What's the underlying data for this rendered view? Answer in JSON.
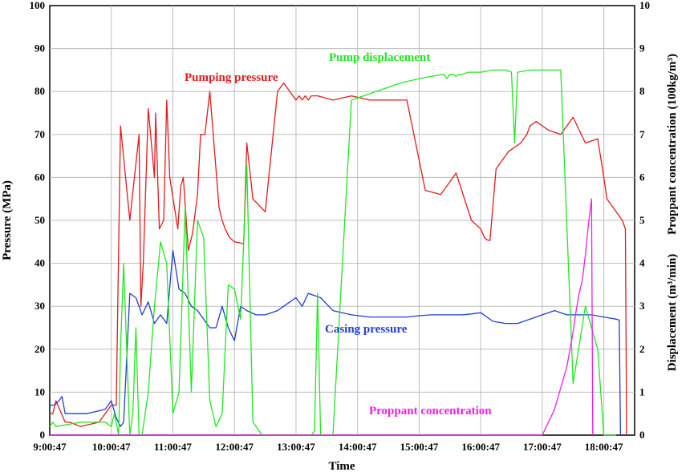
{
  "chart_data": {
    "type": "line",
    "xlabel": "Time",
    "ylabel_left": "Pressure (MPa)",
    "ylabel_right_top": "Proppant concentration (100kg/m³)",
    "ylabel_right_bottom": "Displacement (m³/min)",
    "x_ticks": [
      "9:00:47",
      "10:00:47",
      "11:00:47",
      "12:00:47",
      "13:00:47",
      "14:00:47",
      "15:00:47",
      "16:00:47",
      "17:00:47",
      "18:00:47"
    ],
    "y_left_ticks": [
      0,
      10,
      20,
      30,
      40,
      50,
      60,
      70,
      80,
      90,
      100
    ],
    "y_right_ticks": [
      0,
      1,
      2,
      3,
      4,
      5,
      6,
      7,
      8,
      9,
      10
    ],
    "xlim_hours": [
      0,
      9.5
    ],
    "ylim_left": [
      0,
      100
    ],
    "ylim_right": [
      0,
      10
    ],
    "grid": true,
    "series": [
      {
        "name": "Pumping pressure",
        "axis": "left",
        "color": "#e41a1c",
        "x": [
          0,
          0.05,
          0.1,
          0.25,
          0.28,
          0.3,
          0.33,
          0.5,
          0.8,
          1.0,
          1.08,
          1.15,
          1.3,
          1.45,
          1.48,
          1.52,
          1.6,
          1.7,
          1.72,
          1.78,
          1.85,
          1.9,
          1.95,
          2.08,
          2.13,
          2.17,
          2.25,
          2.32,
          2.4,
          2.45,
          2.52,
          2.6,
          2.75,
          2.8,
          2.85,
          2.92,
          3.0,
          3.08,
          3.15,
          3.2,
          3.3,
          3.5,
          3.7,
          3.8,
          3.9,
          3.95,
          4.0,
          4.05,
          4.1,
          4.15,
          4.2,
          4.25,
          4.35,
          4.6,
          4.9,
          5.2,
          5.5,
          5.8,
          6.1,
          6.35,
          6.6,
          6.85,
          7.0,
          7.03,
          7.06,
          7.1,
          7.15,
          7.25,
          7.45,
          7.65,
          7.75,
          7.8,
          7.9,
          8.1,
          8.3,
          8.5,
          8.7,
          8.9,
          9.0,
          9.05,
          9.3,
          9.35,
          9.37
        ],
        "y": [
          5,
          5,
          8,
          3,
          3,
          3,
          3,
          2,
          3,
          7,
          7,
          72,
          50,
          70,
          30,
          40,
          76,
          60,
          75,
          48,
          50,
          78,
          60,
          48,
          58,
          60,
          43,
          47,
          56,
          70,
          70,
          80,
          53,
          50,
          48,
          46,
          45,
          44.8,
          44.5,
          68,
          55,
          52,
          80,
          82,
          80,
          79,
          78,
          79,
          78,
          79,
          78,
          79,
          79,
          78,
          79,
          78,
          78,
          78,
          57,
          56,
          61,
          50,
          48,
          47,
          46,
          45.5,
          45.3,
          62,
          66,
          68,
          70,
          72,
          73,
          71,
          70,
          74,
          68,
          69,
          60,
          55,
          50,
          48,
          0
        ]
      },
      {
        "name": "Casing pressure",
        "axis": "left",
        "color": "#1f3fd1",
        "x": [
          0,
          0.08,
          0.15,
          0.2,
          0.25,
          0.35,
          0.6,
          0.9,
          1.0,
          1.08,
          1.15,
          1.2,
          1.3,
          1.4,
          1.5,
          1.6,
          1.7,
          1.8,
          1.9,
          2.0,
          2.1,
          2.2,
          2.3,
          2.4,
          2.5,
          2.6,
          2.7,
          2.8,
          2.9,
          3.0,
          3.1,
          3.2,
          3.35,
          3.5,
          3.7,
          3.8,
          3.9,
          4.0,
          4.1,
          4.2,
          4.4,
          4.6,
          4.9,
          5.2,
          5.5,
          5.8,
          6.0,
          6.2,
          6.3,
          6.5,
          6.7,
          6.85,
          7.0,
          7.2,
          7.4,
          7.6,
          7.8,
          8.0,
          8.2,
          8.4,
          8.6,
          8.8,
          9.0,
          9.2,
          9.25,
          9.27
        ],
        "y": [
          7,
          7,
          8,
          9,
          5,
          5,
          5,
          6,
          8,
          4,
          2,
          3,
          33,
          32,
          28,
          31,
          26,
          28,
          26,
          43,
          34,
          33,
          30,
          29,
          27,
          25,
          25,
          30,
          25,
          22,
          30,
          29,
          28,
          28,
          29,
          30,
          31,
          32,
          30,
          33,
          32,
          29,
          28,
          27.5,
          27.5,
          27.5,
          27.8,
          28,
          28,
          28,
          28,
          28.2,
          28.5,
          26.5,
          26,
          26,
          27,
          28,
          29,
          28,
          28,
          28,
          27.5,
          27,
          26.8,
          0
        ]
      },
      {
        "name": "Pump displacement",
        "axis": "right",
        "color": "#1fe81f",
        "x": [
          0,
          0.05,
          0.1,
          0.5,
          0.9,
          1.0,
          1.05,
          1.12,
          1.15,
          1.2,
          1.25,
          1.3,
          1.35,
          1.4,
          1.45,
          1.5,
          1.6,
          1.7,
          1.8,
          1.9,
          2.0,
          2.1,
          2.2,
          2.3,
          2.4,
          2.5,
          2.6,
          2.7,
          2.8,
          2.9,
          3.0,
          3.1,
          3.2,
          3.3,
          3.4,
          3.45,
          3.5,
          3.6,
          3.7,
          3.8,
          3.9,
          4.0,
          4.05,
          4.1,
          4.2,
          4.25,
          4.3,
          4.35,
          4.4,
          4.5,
          4.6,
          4.9,
          5.3,
          5.7,
          6.0,
          6.2,
          6.4,
          6.45,
          6.5,
          6.55,
          6.6,
          6.65,
          6.7,
          6.75,
          6.8,
          7.0,
          7.2,
          7.4,
          7.5,
          7.55,
          7.6,
          7.8,
          7.9,
          8.1,
          8.3,
          8.5,
          8.7,
          8.9,
          9.0,
          9.1,
          9.2
        ],
        "y": [
          0.2,
          0.3,
          0.2,
          0.3,
          0.3,
          0.2,
          0.5,
          0,
          2,
          4,
          2,
          0,
          0.5,
          2.5,
          0,
          0,
          1,
          3,
          4.5,
          4,
          0.5,
          1,
          5.3,
          1,
          5,
          4.6,
          0.8,
          0.2,
          0.5,
          3.5,
          3.4,
          2.7,
          6.3,
          0.3,
          0.1,
          0,
          0,
          0,
          0,
          0,
          0,
          0,
          0,
          0,
          0,
          0,
          0.1,
          3.3,
          0,
          0,
          0,
          7.8,
          8,
          8.2,
          8.3,
          8.35,
          8.4,
          8.3,
          8.4,
          8.4,
          8.35,
          8.4,
          8.4,
          8.42,
          8.45,
          8.45,
          8.5,
          8.5,
          8.45,
          6.8,
          8.45,
          8.5,
          8.5,
          8.5,
          8.5,
          1.2,
          3,
          2,
          0,
          0,
          0
        ]
      },
      {
        "name": "Proppant concentration",
        "axis": "right",
        "color": "#ee1ee8",
        "x": [
          0,
          7.0,
          7.2,
          7.4,
          7.5,
          7.6,
          7.7,
          7.8,
          7.9,
          8.0,
          8.1,
          8.2,
          8.3,
          8.4,
          8.5,
          8.55,
          8.6,
          8.65,
          8.7,
          8.75,
          8.8,
          8.82
        ],
        "y": [
          0,
          0,
          0,
          0,
          0,
          0,
          0,
          0,
          0,
          0,
          0.3,
          0.6,
          1.1,
          1.6,
          2.4,
          2.9,
          3.3,
          3.6,
          4.2,
          4.9,
          5.5,
          0
        ]
      }
    ],
    "annotations": [
      {
        "text": "Pumping pressure",
        "color": "#e41a1c"
      },
      {
        "text": "Pump displacement",
        "color": "#1fe81f"
      },
      {
        "text": "Casing pressure",
        "color": "#1f3fd1"
      },
      {
        "text": "Proppant concentration",
        "color": "#ee1ee8"
      }
    ]
  }
}
